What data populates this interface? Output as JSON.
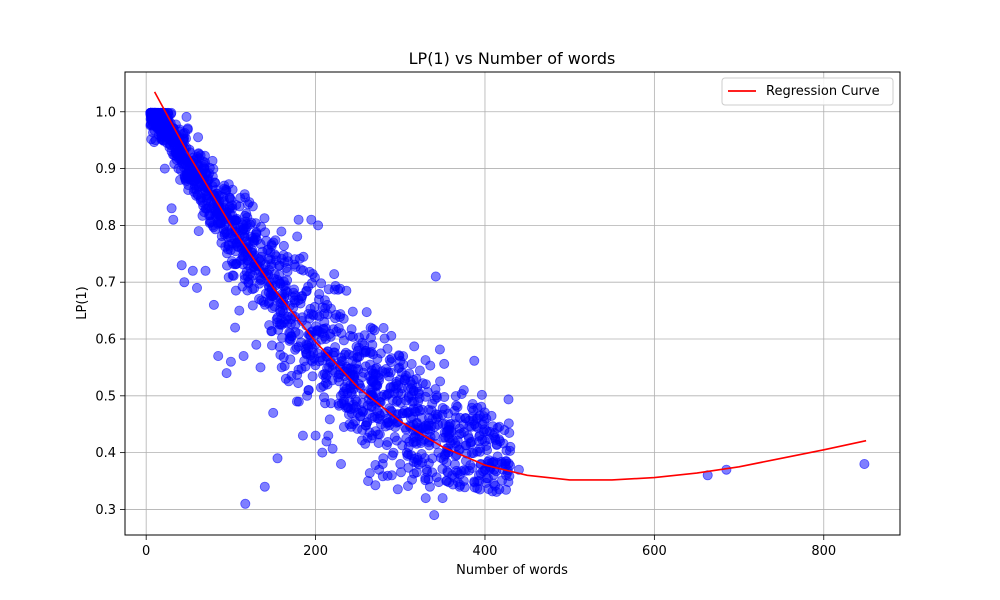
{
  "chart_data": {
    "type": "scatter",
    "title": "LP(1) vs Number of words",
    "xlabel": "Number of words",
    "ylabel": "LP(1)",
    "xlim": [
      -25,
      890
    ],
    "ylim": [
      0.255,
      1.07
    ],
    "xticks": [
      0,
      200,
      400,
      600,
      800
    ],
    "yticks": [
      0.3,
      0.4,
      0.5,
      0.6,
      0.7,
      0.8,
      0.9,
      1.0
    ],
    "grid": true,
    "legend_position": "top-right",
    "colors": {
      "points": "#0000ff",
      "curve": "#ff0000"
    },
    "series": [
      {
        "kind": "scatter",
        "main_cloud_trend": [
          [
            5,
            1.0
          ],
          [
            20,
            0.98
          ],
          [
            50,
            0.91
          ],
          [
            100,
            0.79
          ],
          [
            150,
            0.69
          ],
          [
            200,
            0.6
          ],
          [
            250,
            0.53
          ],
          [
            300,
            0.47
          ],
          [
            350,
            0.42
          ],
          [
            400,
            0.39
          ],
          [
            430,
            0.37
          ]
        ],
        "points": [
          [
            8,
            0.99
          ],
          [
            15,
            0.99
          ],
          [
            20,
            0.95
          ],
          [
            22,
            0.9
          ],
          [
            25,
            0.96
          ],
          [
            30,
            0.93
          ],
          [
            30,
            0.83
          ],
          [
            32,
            0.81
          ],
          [
            38,
            0.9
          ],
          [
            40,
            0.88
          ],
          [
            42,
            0.73
          ],
          [
            45,
            0.7
          ],
          [
            55,
            0.72
          ],
          [
            60,
            0.69
          ],
          [
            62,
            0.79
          ],
          [
            70,
            0.72
          ],
          [
            80,
            0.66
          ],
          [
            85,
            0.57
          ],
          [
            95,
            0.54
          ],
          [
            100,
            0.56
          ],
          [
            105,
            0.62
          ],
          [
            110,
            0.65
          ],
          [
            115,
            0.57
          ],
          [
            117,
            0.31
          ],
          [
            130,
            0.59
          ],
          [
            135,
            0.55
          ],
          [
            140,
            0.34
          ],
          [
            150,
            0.47
          ],
          [
            155,
            0.39
          ],
          [
            160,
            0.55
          ],
          [
            165,
            0.53
          ],
          [
            170,
            0.61
          ],
          [
            178,
            0.49
          ],
          [
            180,
            0.81
          ],
          [
            185,
            0.43
          ],
          [
            190,
            0.5
          ],
          [
            195,
            0.81
          ],
          [
            200,
            0.43
          ],
          [
            203,
            0.8
          ],
          [
            208,
            0.4
          ],
          [
            215,
            0.43
          ],
          [
            230,
            0.38
          ],
          [
            240,
            0.45
          ],
          [
            245,
            0.52
          ],
          [
            250,
            0.47
          ],
          [
            255,
            0.44
          ],
          [
            262,
            0.35
          ],
          [
            265,
            0.62
          ],
          [
            275,
            0.37
          ],
          [
            280,
            0.39
          ],
          [
            290,
            0.36
          ],
          [
            300,
            0.38
          ],
          [
            310,
            0.41
          ],
          [
            320,
            0.44
          ],
          [
            330,
            0.32
          ],
          [
            335,
            0.34
          ],
          [
            340,
            0.29
          ],
          [
            342,
            0.71
          ],
          [
            345,
            0.4
          ],
          [
            350,
            0.32
          ],
          [
            355,
            0.35
          ],
          [
            365,
            0.45
          ],
          [
            370,
            0.34
          ],
          [
            375,
            0.35
          ],
          [
            375,
            0.51
          ],
          [
            380,
            0.43
          ],
          [
            390,
            0.46
          ],
          [
            395,
            0.38
          ],
          [
            400,
            0.37
          ],
          [
            410,
            0.43
          ],
          [
            420,
            0.38
          ],
          [
            425,
            0.36
          ],
          [
            430,
            0.41
          ],
          [
            440,
            0.37
          ],
          [
            663,
            0.36
          ],
          [
            685,
            0.37
          ],
          [
            848,
            0.38
          ]
        ]
      },
      {
        "kind": "line",
        "name": "Regression Curve",
        "x": [
          10,
          50,
          100,
          150,
          200,
          250,
          300,
          350,
          400,
          450,
          500,
          550,
          600,
          650,
          700,
          750,
          800,
          850
        ],
        "y": [
          1.035,
          0.925,
          0.8,
          0.69,
          0.595,
          0.515,
          0.455,
          0.41,
          0.378,
          0.36,
          0.352,
          0.352,
          0.356,
          0.364,
          0.375,
          0.39,
          0.405,
          0.421
        ]
      }
    ]
  }
}
